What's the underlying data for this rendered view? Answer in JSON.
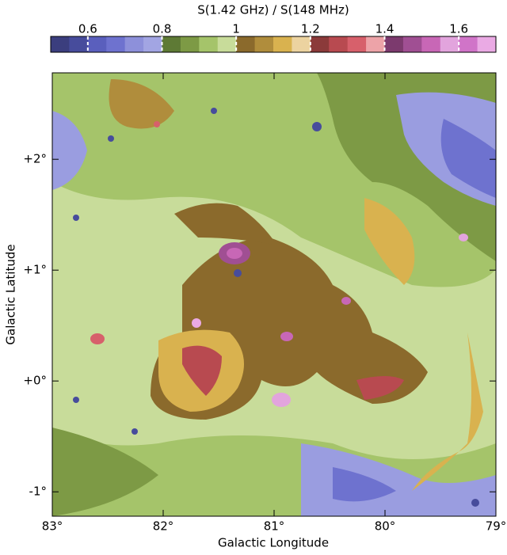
{
  "chart_data": {
    "type": "image",
    "colorbar": {
      "label": "S(1.42 GHz) / S(148 MHz)",
      "clim": [
        0.5,
        1.7
      ],
      "ticks": [
        0.6,
        0.8,
        1.0,
        1.2,
        1.4,
        1.6
      ],
      "colors": [
        "#3b3e7e",
        "#474c9c",
        "#5a5fbd",
        "#6e72cf",
        "#8d90da",
        "#a2a5e3",
        "#5e7a35",
        "#7d9a45",
        "#a5c46a",
        "#c8dc9a",
        "#8b6a2c",
        "#b08d3c",
        "#d9b24f",
        "#ecd3a0",
        "#8b3a3a",
        "#b84a50",
        "#d7606b",
        "#eda3a8",
        "#7c3a6e",
        "#a04f93",
        "#c867b6",
        "#e2a4dd",
        "#d074c8",
        "#eaaae4"
      ]
    },
    "x_label": "Galactic Longitude",
    "y_label": "Galactic Latitude",
    "xlim": [
      83,
      79
    ],
    "ylim": [
      -1.22,
      2.78
    ],
    "xticks": [
      {
        "value": 83,
        "label": "83°"
      },
      {
        "value": 82,
        "label": "82°"
      },
      {
        "value": 81,
        "label": "81°"
      },
      {
        "value": 80,
        "label": "80°"
      },
      {
        "value": 79,
        "label": "79°"
      }
    ],
    "yticks": [
      {
        "value": -1,
        "label": "-1°"
      },
      {
        "value": 0,
        "label": "+0°"
      },
      {
        "value": 1,
        "label": "+1°"
      },
      {
        "value": 2,
        "label": "+2°"
      }
    ]
  }
}
